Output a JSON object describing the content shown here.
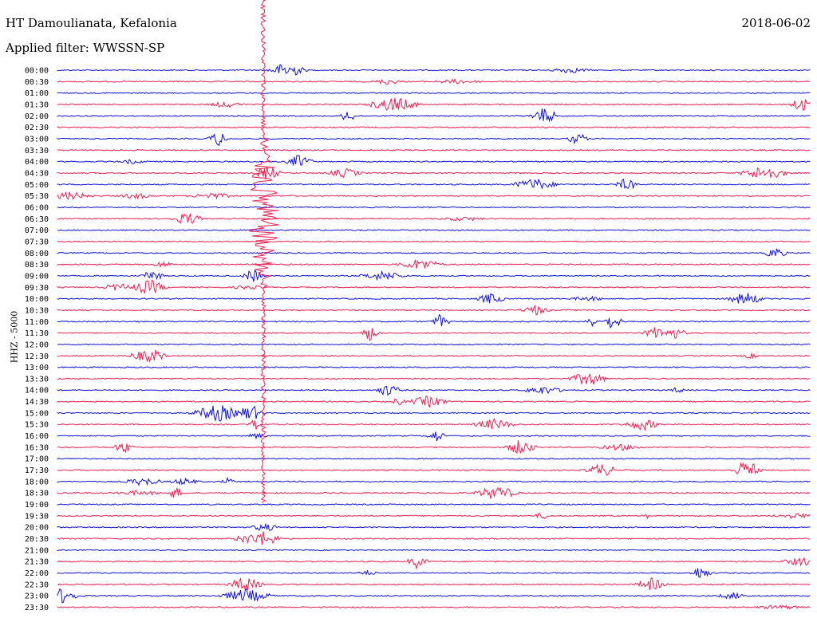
{
  "header": {
    "station": "HT Damoulianata, Kefalonia",
    "filter": "Applied filter: WWSSN-SP",
    "date": "2018-06-02"
  },
  "colors": {
    "blue": "#1010e0",
    "red": "#f02050"
  },
  "chart_data": {
    "type": "line",
    "channel_label": "HHZ - 5000",
    "row_labels": [
      "00:00",
      "00:30",
      "01:00",
      "01:30",
      "02:00",
      "02:30",
      "03:00",
      "03:30",
      "04:00",
      "04:30",
      "05:00",
      "05:30",
      "06:00",
      "06:30",
      "07:00",
      "07:30",
      "08:00",
      "08:30",
      "09:00",
      "09:30",
      "10:00",
      "10:30",
      "11:00",
      "11:30",
      "12:00",
      "12:30",
      "13:00",
      "13:30",
      "14:00",
      "14:30",
      "15:00",
      "15:30",
      "16:00",
      "16:30",
      "17:00",
      "17:30",
      "18:00",
      "18:30",
      "19:00",
      "19:30",
      "20:00",
      "20:30",
      "21:00",
      "21:30",
      "22:00",
      "22:30",
      "23:00",
      "23:30"
    ],
    "trace_colors": [
      "blue",
      "red"
    ]
  }
}
